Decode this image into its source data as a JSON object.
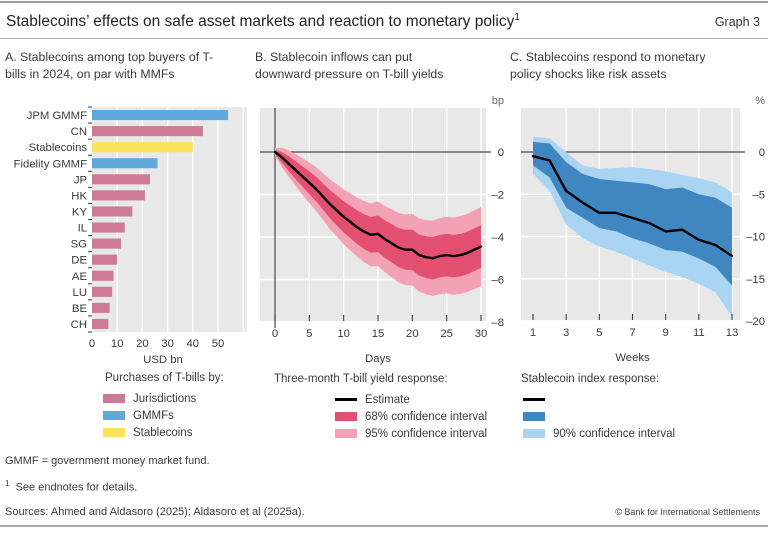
{
  "header": {
    "title": "Stablecoins’ effects on safe asset markets and reaction to monetary policy",
    "title_footnote_marker": "1",
    "graph_label": "Graph 3"
  },
  "colors": {
    "bar_jurisdictions": "#cd7a94",
    "bar_gmmf": "#5fa8dc",
    "bar_stablecoins": "#fae25a",
    "band_68_red": "#e34f70",
    "band_95_pink": "#f2a2b4",
    "band_68_blue": "#4087c1",
    "band_90_lightblue": "#a9d5f2",
    "estimate_line": "#000000",
    "plot_background": "#e8e8e8"
  },
  "chart_data": [
    {
      "type": "bar",
      "orientation": "horizontal",
      "title": "A. Stablecoins among top buyers of T-bills in 2024, on par with MMFs",
      "categories": [
        "JPM GMMF",
        "CN",
        "Stablecoins",
        "Fidelity GMMF",
        "JP",
        "HK",
        "KY",
        "IL",
        "SG",
        "DE",
        "AE",
        "LU",
        "BE",
        "CH"
      ],
      "values": [
        54,
        44,
        40,
        26,
        23,
        21,
        16,
        13,
        11.5,
        10,
        8.5,
        8,
        7,
        6.5
      ],
      "bar_groups": [
        "GMMFs",
        "Jurisdictions",
        "Stablecoins",
        "GMMFs",
        "Jurisdictions",
        "Jurisdictions",
        "Jurisdictions",
        "Jurisdictions",
        "Jurisdictions",
        "Jurisdictions",
        "Jurisdictions",
        "Jurisdictions",
        "Jurisdictions",
        "Jurisdictions"
      ],
      "group_colors": {
        "GMMFs": "#5fa8dc",
        "Jurisdictions": "#cd7a94",
        "Stablecoins": "#fae25a"
      },
      "xlabel": "USD bn",
      "xticks": [
        0,
        10,
        20,
        30,
        40,
        50
      ],
      "xlim": [
        0,
        61.5
      ],
      "grid": "on"
    },
    {
      "type": "line",
      "title": "B. Stablecoin inflows can put downward pressure on T-bill yields",
      "unit": "bp",
      "xlabel": "Days",
      "xticks": [
        0,
        5,
        10,
        15,
        20,
        25,
        30
      ],
      "yticks": [
        0,
        -2,
        -4,
        -6,
        -8
      ],
      "ylim": [
        2,
        -8
      ],
      "x": [
        0,
        1,
        2,
        3,
        4,
        5,
        6,
        7,
        8,
        9,
        10,
        11,
        12,
        13,
        14,
        15,
        16,
        17,
        18,
        19,
        20,
        21,
        22,
        23,
        24,
        25,
        26,
        27,
        28,
        29,
        30
      ],
      "estimate": [
        0,
        -0.25,
        -0.55,
        -0.85,
        -1.15,
        -1.45,
        -1.75,
        -2.1,
        -2.45,
        -2.75,
        -3.05,
        -3.3,
        -3.55,
        -3.75,
        -3.9,
        -3.85,
        -4.1,
        -4.3,
        -4.5,
        -4.6,
        -4.6,
        -4.85,
        -4.95,
        -5.0,
        -4.9,
        -4.85,
        -4.9,
        -4.85,
        -4.75,
        -4.6,
        -4.45
      ],
      "ci68_halfwidth": [
        0.1,
        0.25,
        0.35,
        0.42,
        0.48,
        0.53,
        0.58,
        0.62,
        0.66,
        0.7,
        0.73,
        0.76,
        0.79,
        0.82,
        0.84,
        0.86,
        0.88,
        0.9,
        0.92,
        0.94,
        0.95,
        0.97,
        0.98,
        1.0,
        1.0,
        1.0,
        1.0,
        1.0,
        1.0,
        1.0,
        1.0
      ],
      "ci95_halfwidth": [
        0.18,
        0.45,
        0.62,
        0.75,
        0.86,
        0.95,
        1.03,
        1.1,
        1.17,
        1.23,
        1.29,
        1.34,
        1.39,
        1.44,
        1.48,
        1.52,
        1.56,
        1.6,
        1.63,
        1.66,
        1.69,
        1.72,
        1.75,
        1.77,
        1.79,
        1.8,
        1.82,
        1.83,
        1.84,
        1.85,
        1.86
      ],
      "grid": "on"
    },
    {
      "type": "line",
      "title": "C. Stablecoins respond to monetary policy shocks like risk assets",
      "unit": "%",
      "xlabel": "Weeks",
      "xticks": [
        1,
        3,
        5,
        7,
        9,
        11,
        13
      ],
      "yticks": [
        0,
        -5,
        -10,
        -15,
        -20
      ],
      "ylim": [
        5,
        -20
      ],
      "x": [
        1,
        2,
        3,
        4,
        5,
        6,
        7,
        8,
        9,
        10,
        11,
        12,
        13
      ],
      "estimate": [
        -0.5,
        -1.0,
        -4.6,
        -6.0,
        -7.2,
        -7.2,
        -7.8,
        -8.4,
        -9.4,
        -9.2,
        -10.4,
        -11.0,
        -12.3
      ],
      "ci68_high": [
        1.2,
        1.0,
        -1.2,
        -2.6,
        -3.2,
        -3.4,
        -3.6,
        -3.8,
        -4.4,
        -4.2,
        -5.0,
        -5.4,
        -6.6
      ],
      "ci68_low": [
        -1.6,
        -3.0,
        -6.6,
        -7.8,
        -9.0,
        -9.4,
        -10.2,
        -10.8,
        -11.6,
        -11.8,
        -12.6,
        -13.6,
        -15.8
      ],
      "ci90_high": [
        1.8,
        1.6,
        0.0,
        -1.6,
        -2.0,
        -1.9,
        -1.8,
        -2.0,
        -2.3,
        -2.7,
        -3.1,
        -3.6,
        -4.8
      ],
      "ci90_low": [
        -2.6,
        -4.6,
        -8.6,
        -10.2,
        -11.2,
        -11.8,
        -12.6,
        -13.4,
        -14.2,
        -14.8,
        -15.6,
        -16.6,
        -19.5
      ],
      "grid": "on"
    }
  ],
  "legends": [
    {
      "title": "Purchases of T-bills by:",
      "items": [
        {
          "label": "Jurisdictions",
          "swatch": "box",
          "color": "#cd7a94"
        },
        {
          "label": "GMMFs",
          "swatch": "box",
          "color": "#5fa8dc"
        },
        {
          "label": "Stablecoins",
          "swatch": "box",
          "color": "#fae25a"
        }
      ]
    },
    {
      "title": "Three-month T-bill yield response:",
      "items": [
        {
          "label": "Estimate",
          "swatch": "line",
          "color": "#000000"
        },
        {
          "label": "68% confidence interval",
          "swatch": "box",
          "color": "#e34f70"
        },
        {
          "label": "95% confidence interval",
          "swatch": "box",
          "color": "#f2a2b4"
        }
      ]
    },
    {
      "title": "Stablecoin index response:",
      "items": [
        {
          "label": "",
          "swatch": "line",
          "color": "#000000"
        },
        {
          "label": "",
          "swatch": "box",
          "color": "#4087c1"
        },
        {
          "label": "90% confidence interval",
          "swatch": "box",
          "color": "#a9d5f2"
        }
      ]
    }
  ],
  "footer": {
    "abbreviation_note": "GMMF = government money market fund.",
    "endnote_marker": "1",
    "endnote_text": "See endnotes for details.",
    "sources": "Sources: Ahmed and Aldasoro (2025); Aldasoro et al (2025a).",
    "copyright": "© Bank for International Settlements"
  }
}
